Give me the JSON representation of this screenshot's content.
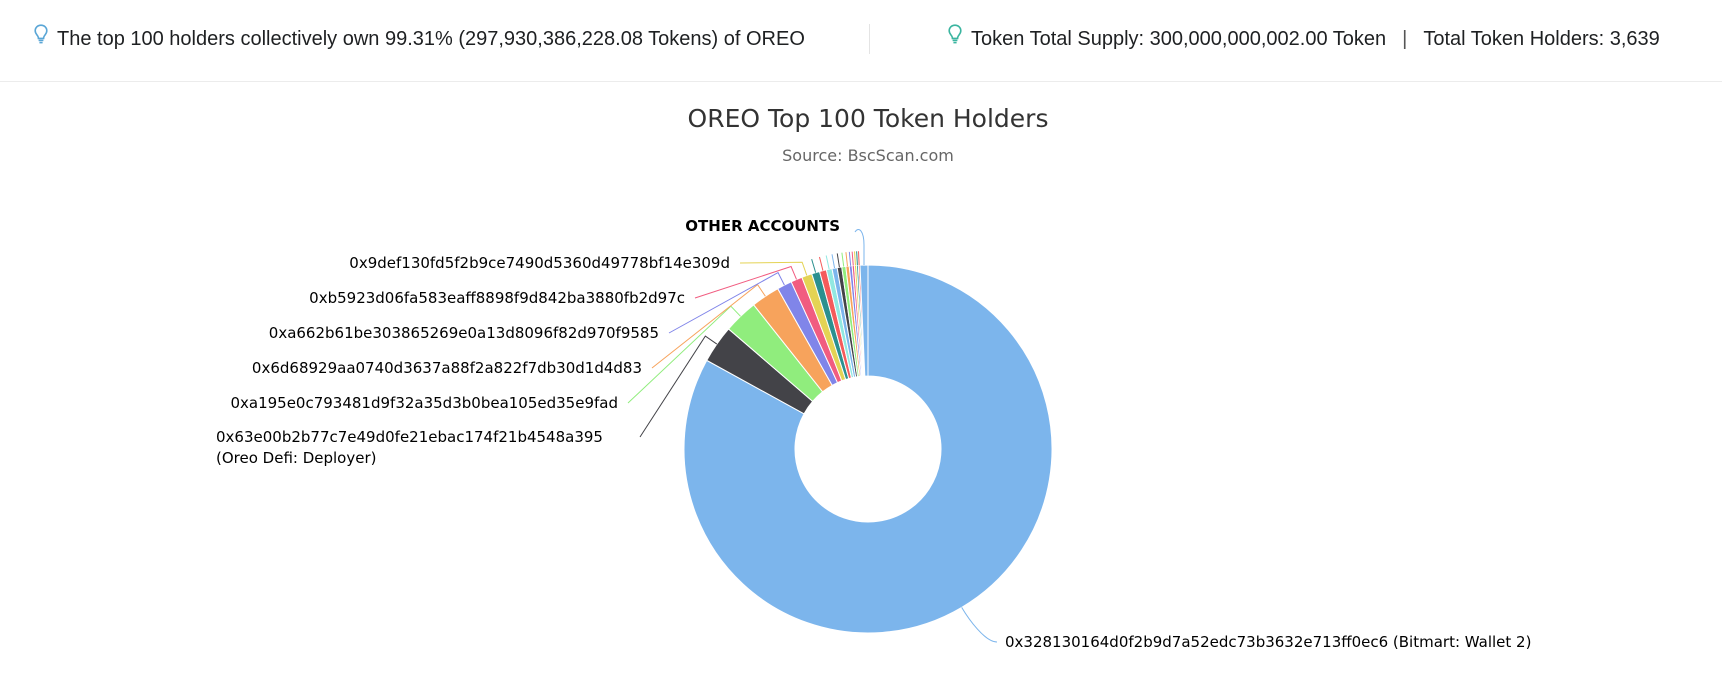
{
  "summary": {
    "top_holders_text": "The top 100 holders collectively own 99.31% (297,930,386,228.08 Tokens) of OREO",
    "total_supply_text": "Token Total Supply: 300,000,000,002.00 Token",
    "separator": "|",
    "total_holders_text": "Total Token Holders: 3,639"
  },
  "icons": {
    "info": "lightbulb-icon"
  },
  "colors": {
    "accent": "#5aa6d6"
  },
  "chart_data": {
    "type": "pie",
    "variant": "donut",
    "title": "OREO Top 100 Token Holders",
    "subtitle": "Source: BscScan.com",
    "slices": [
      {
        "label": "0x328130164d0f2b9d7a52edc73b3632e713ff0ec6 (Bitmart: Wallet 2)",
        "value": 82.6,
        "color": "#7cb5ec"
      },
      {
        "label": "0x63e00b2b77c7e49d0fe21ebac174f21b4548a395",
        "label_line2": "(Oreo Defi: Deployer)",
        "value": 3.3,
        "color": "#434348"
      },
      {
        "label": "0xa195e0c793481d9f32a35d3b0bea105ed35e9fad",
        "value": 3.0,
        "color": "#90ed7d"
      },
      {
        "label": "0x6d68929aa0740d3637a88f2a822f7db30d1d4d83",
        "value": 2.5,
        "color": "#f7a35c"
      },
      {
        "label": "0xa662b61be303865269e0a13d8096f82d970f9585",
        "value": 1.3,
        "color": "#8085e9"
      },
      {
        "label": "0xb5923d06fa583eaff8898f9d842ba3880fb2d97c",
        "value": 1.0,
        "color": "#f15c80"
      },
      {
        "label": "0x9def130fd5f2b9ce7490d5360d49778bf14e309d",
        "value": 0.9,
        "color": "#e4d354"
      },
      {
        "label": "",
        "value": 0.7,
        "color": "#2b908f"
      },
      {
        "label": "",
        "value": 0.6,
        "color": "#f45b5b"
      },
      {
        "label": "",
        "value": 0.5,
        "color": "#91e8e1"
      },
      {
        "label": "",
        "value": 0.45,
        "color": "#7cb5ec"
      },
      {
        "label": "",
        "value": 0.4,
        "color": "#434348"
      },
      {
        "label": "",
        "value": 0.35,
        "color": "#90ed7d"
      },
      {
        "label": "",
        "value": 0.3,
        "color": "#f7a35c"
      },
      {
        "label": "",
        "value": 0.25,
        "color": "#8085e9"
      },
      {
        "label": "",
        "value": 0.2,
        "color": "#f15c80"
      },
      {
        "label": "",
        "value": 0.18,
        "color": "#e4d354"
      },
      {
        "label": "",
        "value": 0.16,
        "color": "#2b908f"
      },
      {
        "label": "",
        "value": 0.14,
        "color": "#f45b5b"
      },
      {
        "label": "OTHER ACCOUNTS",
        "value": 0.69,
        "color": "#7cb5ec"
      }
    ]
  }
}
